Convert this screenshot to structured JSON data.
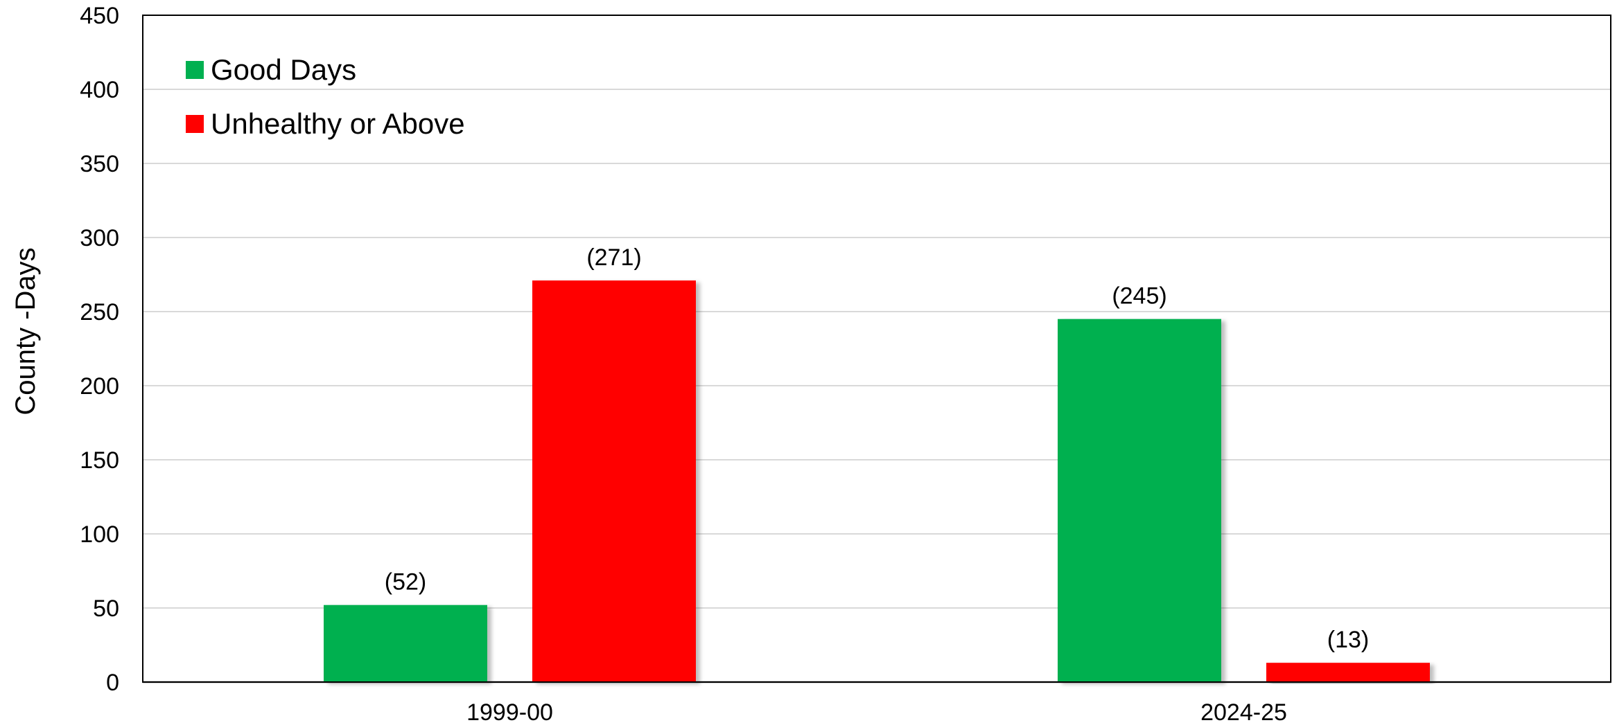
{
  "chart_data": {
    "type": "bar",
    "categories": [
      "1999-00",
      "2024-25"
    ],
    "series": [
      {
        "name": "Good Days",
        "color": "#00b050",
        "values": [
          52,
          245
        ],
        "labels": [
          "(52)",
          "(245)"
        ]
      },
      {
        "name": "Unhealthy or Above",
        "color": "#ff0000",
        "values": [
          271,
          13
        ],
        "labels": [
          "(271)",
          "(13)"
        ]
      }
    ],
    "title": "",
    "xlabel": "",
    "ylabel": "County -Days",
    "ylim": [
      0,
      450
    ],
    "yticks": [
      0,
      50,
      100,
      150,
      200,
      250,
      300,
      350,
      400,
      450
    ],
    "grid": true,
    "legend_position": "top-left"
  }
}
